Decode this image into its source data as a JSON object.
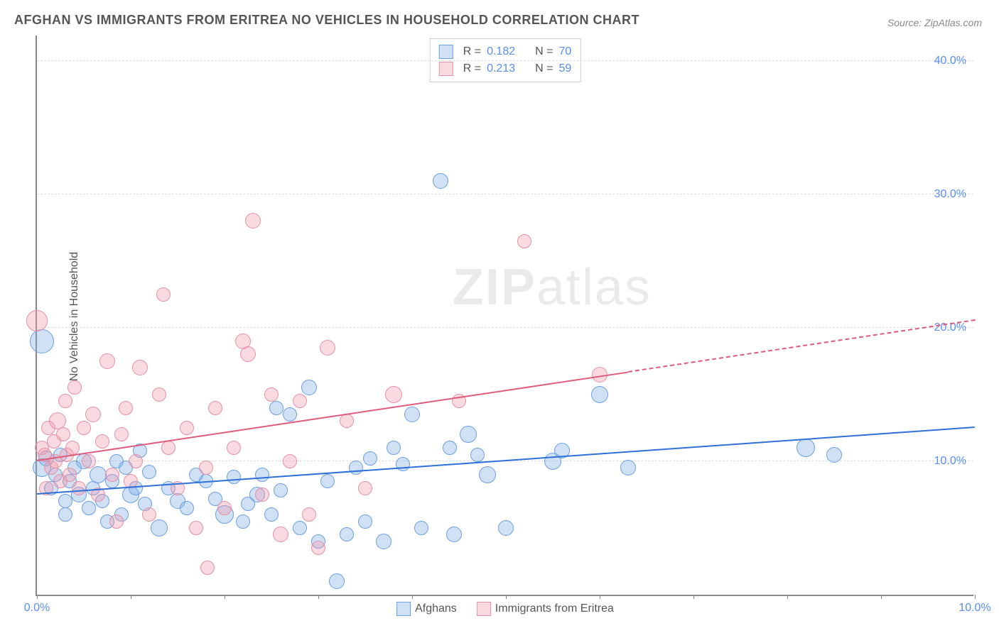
{
  "title": "AFGHAN VS IMMIGRANTS FROM ERITREA NO VEHICLES IN HOUSEHOLD CORRELATION CHART",
  "source": "Source: ZipAtlas.com",
  "ylabel": "No Vehicles in Household",
  "watermark_bold": "ZIP",
  "watermark_rest": "atlas",
  "chart": {
    "type": "scatter",
    "background_color": "#ffffff",
    "grid_color": "#dddddd",
    "axis_color": "#888888",
    "text_color": "#555555",
    "accent_color": "#5a8dee",
    "xlim": [
      0,
      10
    ],
    "ylim": [
      0,
      42
    ],
    "y_ticks": [
      10,
      20,
      30,
      40
    ],
    "y_tick_labels": [
      "10.0%",
      "20.0%",
      "30.0%",
      "40.0%"
    ],
    "x_ticks": [
      0,
      1,
      2,
      3,
      4,
      5,
      6,
      7,
      8,
      9,
      10
    ],
    "x_tick_labels": {
      "0": "0.0%",
      "10": "10.0%"
    },
    "series": [
      {
        "name": "Afghans",
        "fill": "rgba(120,170,230,0.35)",
        "stroke": "#6aa0e0",
        "trend_color": "#2f6fd8",
        "R": 0.182,
        "N": 70,
        "trend": {
          "x1": 0.0,
          "y1": 7.5,
          "x2": 10.0,
          "y2": 12.5,
          "dash_after_x": null
        },
        "points": [
          [
            0.05,
            9.5,
            12
          ],
          [
            0.05,
            19.0,
            16
          ],
          [
            0.1,
            10.2,
            10
          ],
          [
            0.15,
            8.0,
            9
          ],
          [
            0.2,
            9.0,
            9
          ],
          [
            0.25,
            10.5,
            9
          ],
          [
            0.3,
            7.0,
            9
          ],
          [
            0.3,
            6.0,
            9
          ],
          [
            0.35,
            8.5,
            9
          ],
          [
            0.4,
            9.5,
            9
          ],
          [
            0.45,
            7.5,
            10
          ],
          [
            0.5,
            10.0,
            10
          ],
          [
            0.55,
            6.5,
            9
          ],
          [
            0.6,
            8.0,
            9
          ],
          [
            0.65,
            9.0,
            11
          ],
          [
            0.7,
            7.0,
            9
          ],
          [
            0.75,
            5.5,
            9
          ],
          [
            0.8,
            8.5,
            9
          ],
          [
            0.85,
            10.0,
            9
          ],
          [
            0.9,
            6.0,
            9
          ],
          [
            0.95,
            9.5,
            9
          ],
          [
            1.0,
            7.5,
            11
          ],
          [
            1.05,
            8.0,
            9
          ],
          [
            1.1,
            10.8,
            9
          ],
          [
            1.15,
            6.8,
            9
          ],
          [
            1.2,
            9.2,
            9
          ],
          [
            1.3,
            5.0,
            11
          ],
          [
            1.4,
            8.0,
            9
          ],
          [
            1.5,
            7.0,
            10
          ],
          [
            1.6,
            6.5,
            9
          ],
          [
            1.7,
            9.0,
            9
          ],
          [
            1.8,
            8.5,
            9
          ],
          [
            1.9,
            7.2,
            9
          ],
          [
            2.0,
            6.0,
            12
          ],
          [
            2.1,
            8.8,
            9
          ],
          [
            2.2,
            5.5,
            9
          ],
          [
            2.25,
            6.8,
            9
          ],
          [
            2.35,
            7.5,
            10
          ],
          [
            2.4,
            9.0,
            9
          ],
          [
            2.5,
            6.0,
            9
          ],
          [
            2.55,
            14.0,
            9
          ],
          [
            2.6,
            7.8,
            9
          ],
          [
            2.7,
            13.5,
            9
          ],
          [
            2.8,
            5.0,
            9
          ],
          [
            2.9,
            15.5,
            10
          ],
          [
            3.0,
            4.0,
            9
          ],
          [
            3.1,
            8.5,
            9
          ],
          [
            3.2,
            1.0,
            10
          ],
          [
            3.3,
            4.5,
            9
          ],
          [
            3.4,
            9.5,
            9
          ],
          [
            3.5,
            5.5,
            9
          ],
          [
            3.55,
            10.2,
            9
          ],
          [
            3.7,
            4.0,
            10
          ],
          [
            3.8,
            11.0,
            9
          ],
          [
            3.9,
            9.8,
            9
          ],
          [
            4.0,
            13.5,
            10
          ],
          [
            4.1,
            5.0,
            9
          ],
          [
            4.3,
            31.0,
            10
          ],
          [
            4.4,
            11.0,
            9
          ],
          [
            4.45,
            4.5,
            10
          ],
          [
            4.6,
            12.0,
            11
          ],
          [
            4.7,
            10.5,
            9
          ],
          [
            4.8,
            9.0,
            11
          ],
          [
            5.0,
            5.0,
            10
          ],
          [
            5.5,
            10.0,
            11
          ],
          [
            5.6,
            10.8,
            10
          ],
          [
            6.0,
            15.0,
            11
          ],
          [
            6.3,
            9.5,
            10
          ],
          [
            8.2,
            11.0,
            12
          ],
          [
            8.5,
            10.5,
            10
          ]
        ]
      },
      {
        "name": "Immigrants from Eritrea",
        "fill": "rgba(240,150,170,0.35)",
        "stroke": "#e690a5",
        "trend_color": "#e05a7a",
        "R": 0.213,
        "N": 59,
        "trend": {
          "x1": 0.0,
          "y1": 10.0,
          "x2": 10.0,
          "y2": 20.5,
          "dash_after_x": 6.3
        },
        "points": [
          [
            0.0,
            20.5,
            14
          ],
          [
            0.05,
            11.0,
            9
          ],
          [
            0.08,
            10.5,
            9
          ],
          [
            0.1,
            8.0,
            9
          ],
          [
            0.12,
            12.5,
            9
          ],
          [
            0.15,
            9.5,
            9
          ],
          [
            0.18,
            11.5,
            9
          ],
          [
            0.2,
            10.0,
            9
          ],
          [
            0.22,
            13.0,
            11
          ],
          [
            0.25,
            8.5,
            9
          ],
          [
            0.28,
            12.0,
            9
          ],
          [
            0.3,
            14.5,
            9
          ],
          [
            0.32,
            10.5,
            9
          ],
          [
            0.35,
            9.0,
            9
          ],
          [
            0.38,
            11.0,
            9
          ],
          [
            0.4,
            15.5,
            9
          ],
          [
            0.45,
            8.0,
            9
          ],
          [
            0.5,
            12.5,
            9
          ],
          [
            0.55,
            10.0,
            9
          ],
          [
            0.6,
            13.5,
            10
          ],
          [
            0.65,
            7.5,
            9
          ],
          [
            0.7,
            11.5,
            9
          ],
          [
            0.75,
            17.5,
            10
          ],
          [
            0.8,
            9.0,
            9
          ],
          [
            0.85,
            5.5,
            9
          ],
          [
            0.9,
            12.0,
            9
          ],
          [
            0.95,
            14.0,
            9
          ],
          [
            1.0,
            8.5,
            9
          ],
          [
            1.05,
            10.0,
            9
          ],
          [
            1.1,
            17.0,
            10
          ],
          [
            1.2,
            6.0,
            9
          ],
          [
            1.3,
            15.0,
            9
          ],
          [
            1.35,
            22.5,
            9
          ],
          [
            1.4,
            11.0,
            9
          ],
          [
            1.5,
            8.0,
            9
          ],
          [
            1.6,
            12.5,
            9
          ],
          [
            1.7,
            5.0,
            9
          ],
          [
            1.8,
            9.5,
            9
          ],
          [
            1.82,
            2.0,
            9
          ],
          [
            1.9,
            14.0,
            9
          ],
          [
            2.0,
            6.5,
            9
          ],
          [
            2.1,
            11.0,
            9
          ],
          [
            2.2,
            19.0,
            10
          ],
          [
            2.25,
            18.0,
            10
          ],
          [
            2.3,
            28.0,
            10
          ],
          [
            2.4,
            7.5,
            9
          ],
          [
            2.5,
            15.0,
            9
          ],
          [
            2.6,
            4.5,
            10
          ],
          [
            2.7,
            10.0,
            9
          ],
          [
            2.8,
            14.5,
            9
          ],
          [
            2.9,
            6.0,
            9
          ],
          [
            3.0,
            3.5,
            9
          ],
          [
            3.1,
            18.5,
            10
          ],
          [
            3.3,
            13.0,
            9
          ],
          [
            3.5,
            8.0,
            9
          ],
          [
            3.8,
            15.0,
            11
          ],
          [
            4.5,
            14.5,
            9
          ],
          [
            5.2,
            26.5,
            9
          ],
          [
            6.0,
            16.5,
            10
          ]
        ]
      }
    ],
    "top_legend_rows": [
      {
        "series_idx": 0,
        "R_label": "R =",
        "R": "0.182",
        "N_label": "N =",
        "N": "70"
      },
      {
        "series_idx": 1,
        "R_label": "R =",
        "R": "0.213",
        "N_label": "N =",
        "N": "59"
      }
    ]
  }
}
